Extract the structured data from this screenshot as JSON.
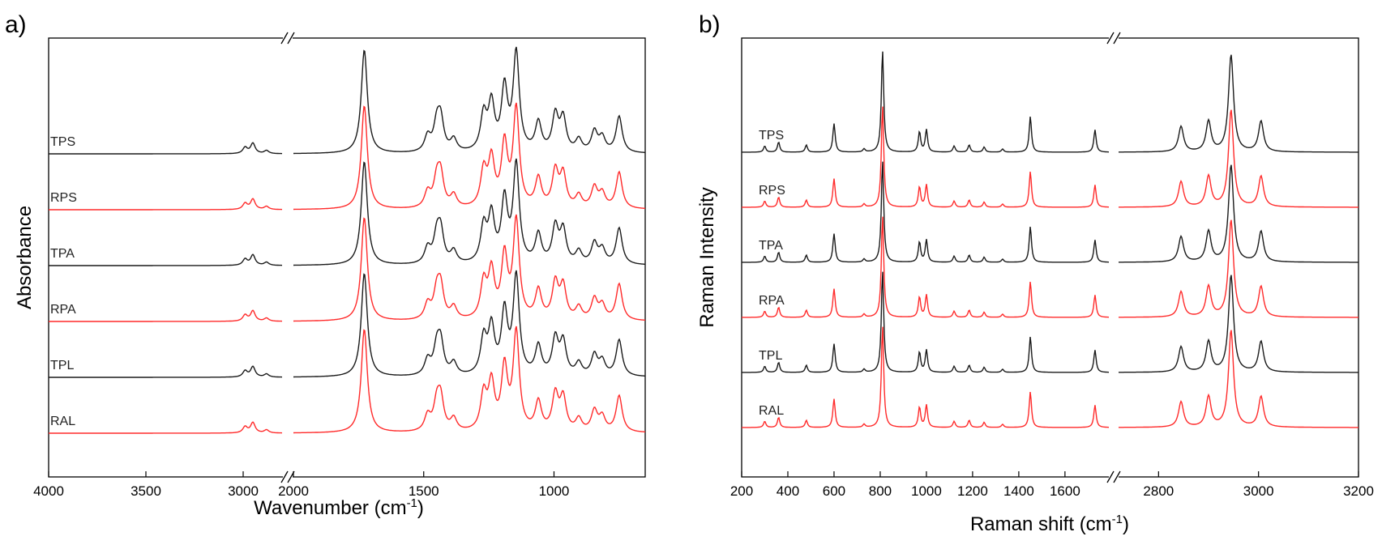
{
  "colors": {
    "black_trace": "#1a1a1a",
    "red_trace": "#ff2a2a",
    "frame": "#000000"
  },
  "chart_data": [
    {
      "type": "line",
      "panel_label": "a)",
      "xlabel": "Wavenumber (cm",
      "xlabel_sup": "-1",
      "xlabel_close": ")",
      "ylabel": "Absorbance",
      "x_reversed": true,
      "x_break": [
        2800,
        2000
      ],
      "segments": [
        [
          4000,
          2800
        ],
        [
          2000,
          650
        ]
      ],
      "xticks": [
        4000,
        3500,
        3000,
        2000,
        1500,
        1000
      ],
      "tick_labels": [
        "4000",
        "3500",
        "3000",
        "2000",
        "1500",
        "1000"
      ],
      "grid": false,
      "series": [
        {
          "name": "TPS",
          "color": "black",
          "peaks": [
            [
              2990,
              0.06
            ],
            [
              2950,
              0.1
            ],
            [
              2880,
              0.03
            ],
            [
              1728,
              1.0
            ],
            [
              1485,
              0.15
            ],
            [
              1450,
              0.25
            ],
            [
              1435,
              0.3
            ],
            [
              1385,
              0.12
            ],
            [
              1270,
              0.35
            ],
            [
              1240,
              0.45
            ],
            [
              1190,
              0.6
            ],
            [
              1145,
              0.95
            ],
            [
              1060,
              0.28
            ],
            [
              995,
              0.35
            ],
            [
              965,
              0.32
            ],
            [
              905,
              0.12
            ],
            [
              845,
              0.2
            ],
            [
              815,
              0.14
            ],
            [
              750,
              0.35
            ]
          ]
        },
        {
          "name": "RPS",
          "color": "red",
          "peaks": [
            [
              2990,
              0.06
            ],
            [
              2950,
              0.1
            ],
            [
              2880,
              0.03
            ],
            [
              1728,
              1.0
            ],
            [
              1485,
              0.15
            ],
            [
              1450,
              0.25
            ],
            [
              1435,
              0.3
            ],
            [
              1385,
              0.12
            ],
            [
              1270,
              0.35
            ],
            [
              1240,
              0.45
            ],
            [
              1190,
              0.6
            ],
            [
              1145,
              0.95
            ],
            [
              1060,
              0.28
            ],
            [
              995,
              0.35
            ],
            [
              965,
              0.32
            ],
            [
              905,
              0.12
            ],
            [
              845,
              0.2
            ],
            [
              815,
              0.14
            ],
            [
              750,
              0.35
            ]
          ]
        },
        {
          "name": "TPA",
          "color": "black",
          "peaks": [
            [
              2990,
              0.06
            ],
            [
              2950,
              0.1
            ],
            [
              2880,
              0.03
            ],
            [
              1728,
              1.0
            ],
            [
              1485,
              0.15
            ],
            [
              1450,
              0.25
            ],
            [
              1435,
              0.3
            ],
            [
              1385,
              0.12
            ],
            [
              1270,
              0.35
            ],
            [
              1240,
              0.45
            ],
            [
              1190,
              0.6
            ],
            [
              1145,
              0.95
            ],
            [
              1060,
              0.28
            ],
            [
              995,
              0.35
            ],
            [
              965,
              0.32
            ],
            [
              905,
              0.12
            ],
            [
              845,
              0.2
            ],
            [
              815,
              0.14
            ],
            [
              750,
              0.35
            ]
          ]
        },
        {
          "name": "RPA",
          "color": "red",
          "peaks": [
            [
              2990,
              0.06
            ],
            [
              2950,
              0.1
            ],
            [
              2880,
              0.03
            ],
            [
              1728,
              1.0
            ],
            [
              1485,
              0.15
            ],
            [
              1450,
              0.25
            ],
            [
              1435,
              0.3
            ],
            [
              1385,
              0.12
            ],
            [
              1270,
              0.35
            ],
            [
              1240,
              0.45
            ],
            [
              1190,
              0.6
            ],
            [
              1145,
              0.95
            ],
            [
              1060,
              0.28
            ],
            [
              995,
              0.35
            ],
            [
              965,
              0.32
            ],
            [
              905,
              0.12
            ],
            [
              845,
              0.2
            ],
            [
              815,
              0.14
            ],
            [
              750,
              0.35
            ]
          ]
        },
        {
          "name": "TPL",
          "color": "black",
          "peaks": [
            [
              2990,
              0.06
            ],
            [
              2950,
              0.1
            ],
            [
              2880,
              0.03
            ],
            [
              1728,
              1.0
            ],
            [
              1485,
              0.15
            ],
            [
              1450,
              0.25
            ],
            [
              1435,
              0.3
            ],
            [
              1385,
              0.12
            ],
            [
              1270,
              0.35
            ],
            [
              1240,
              0.45
            ],
            [
              1190,
              0.6
            ],
            [
              1145,
              0.95
            ],
            [
              1060,
              0.28
            ],
            [
              995,
              0.35
            ],
            [
              965,
              0.32
            ],
            [
              905,
              0.12
            ],
            [
              845,
              0.2
            ],
            [
              815,
              0.14
            ],
            [
              750,
              0.35
            ]
          ]
        },
        {
          "name": "RAL",
          "color": "red",
          "peaks": [
            [
              2990,
              0.06
            ],
            [
              2950,
              0.1
            ],
            [
              2880,
              0.03
            ],
            [
              1728,
              1.0
            ],
            [
              1485,
              0.15
            ],
            [
              1450,
              0.25
            ],
            [
              1435,
              0.3
            ],
            [
              1385,
              0.12
            ],
            [
              1270,
              0.35
            ],
            [
              1240,
              0.45
            ],
            [
              1190,
              0.6
            ],
            [
              1145,
              0.95
            ],
            [
              1060,
              0.28
            ],
            [
              995,
              0.35
            ],
            [
              965,
              0.32
            ],
            [
              905,
              0.12
            ],
            [
              845,
              0.2
            ],
            [
              815,
              0.14
            ],
            [
              750,
              0.35
            ]
          ]
        }
      ]
    },
    {
      "type": "line",
      "panel_label": "b)",
      "xlabel": "Raman shift (cm",
      "xlabel_sup": "-1",
      "xlabel_close": ")",
      "ylabel": "Raman Intensity",
      "x_reversed": false,
      "x_break": [
        1790,
        2720
      ],
      "segments": [
        [
          200,
          1790
        ],
        [
          2720,
          3200
        ]
      ],
      "xticks": [
        200,
        400,
        600,
        800,
        1000,
        1200,
        1400,
        1600,
        2800,
        3000,
        3200
      ],
      "tick_labels": [
        "200",
        "400",
        "600",
        "800",
        "1000",
        "1200",
        "1400",
        "1600",
        "2800",
        "3000",
        "3200"
      ],
      "grid": false,
      "series": [
        {
          "name": "TPS",
          "color": "black",
          "peaks": [
            [
              300,
              0.06
            ],
            [
              360,
              0.1
            ],
            [
              480,
              0.07
            ],
            [
              600,
              0.28
            ],
            [
              730,
              0.03
            ],
            [
              810,
              1.0
            ],
            [
              970,
              0.2
            ],
            [
              1000,
              0.22
            ],
            [
              1120,
              0.06
            ],
            [
              1185,
              0.07
            ],
            [
              1250,
              0.05
            ],
            [
              1330,
              0.03
            ],
            [
              1450,
              0.35
            ],
            [
              1730,
              0.22
            ],
            [
              2845,
              0.25
            ],
            [
              2900,
              0.3
            ],
            [
              2945,
              0.95
            ],
            [
              3005,
              0.3
            ]
          ]
        },
        {
          "name": "RPS",
          "color": "red",
          "peaks": [
            [
              300,
              0.06
            ],
            [
              360,
              0.1
            ],
            [
              480,
              0.07
            ],
            [
              600,
              0.28
            ],
            [
              730,
              0.03
            ],
            [
              810,
              1.0
            ],
            [
              970,
              0.2
            ],
            [
              1000,
              0.22
            ],
            [
              1120,
              0.06
            ],
            [
              1185,
              0.07
            ],
            [
              1250,
              0.05
            ],
            [
              1330,
              0.03
            ],
            [
              1450,
              0.35
            ],
            [
              1730,
              0.22
            ],
            [
              2845,
              0.25
            ],
            [
              2900,
              0.3
            ],
            [
              2945,
              0.95
            ],
            [
              3005,
              0.3
            ]
          ]
        },
        {
          "name": "TPA",
          "color": "black",
          "peaks": [
            [
              300,
              0.06
            ],
            [
              360,
              0.1
            ],
            [
              480,
              0.07
            ],
            [
              600,
              0.28
            ],
            [
              730,
              0.03
            ],
            [
              810,
              1.0
            ],
            [
              970,
              0.2
            ],
            [
              1000,
              0.22
            ],
            [
              1120,
              0.06
            ],
            [
              1185,
              0.07
            ],
            [
              1250,
              0.05
            ],
            [
              1330,
              0.03
            ],
            [
              1450,
              0.35
            ],
            [
              1730,
              0.22
            ],
            [
              2845,
              0.25
            ],
            [
              2900,
              0.3
            ],
            [
              2945,
              0.95
            ],
            [
              3005,
              0.3
            ]
          ]
        },
        {
          "name": "RPA",
          "color": "red",
          "peaks": [
            [
              300,
              0.06
            ],
            [
              360,
              0.1
            ],
            [
              480,
              0.07
            ],
            [
              600,
              0.28
            ],
            [
              730,
              0.03
            ],
            [
              810,
              1.0
            ],
            [
              970,
              0.2
            ],
            [
              1000,
              0.22
            ],
            [
              1120,
              0.06
            ],
            [
              1185,
              0.07
            ],
            [
              1250,
              0.05
            ],
            [
              1330,
              0.03
            ],
            [
              1450,
              0.35
            ],
            [
              1730,
              0.22
            ],
            [
              2845,
              0.25
            ],
            [
              2900,
              0.3
            ],
            [
              2945,
              0.95
            ],
            [
              3005,
              0.3
            ]
          ]
        },
        {
          "name": "TPL",
          "color": "black",
          "peaks": [
            [
              300,
              0.06
            ],
            [
              360,
              0.1
            ],
            [
              480,
              0.07
            ],
            [
              600,
              0.28
            ],
            [
              730,
              0.03
            ],
            [
              810,
              1.0
            ],
            [
              970,
              0.2
            ],
            [
              1000,
              0.22
            ],
            [
              1120,
              0.06
            ],
            [
              1185,
              0.07
            ],
            [
              1250,
              0.05
            ],
            [
              1330,
              0.03
            ],
            [
              1450,
              0.35
            ],
            [
              1730,
              0.22
            ],
            [
              2845,
              0.25
            ],
            [
              2900,
              0.3
            ],
            [
              2945,
              0.95
            ],
            [
              3005,
              0.3
            ]
          ]
        },
        {
          "name": "RAL",
          "color": "red",
          "peaks": [
            [
              300,
              0.06
            ],
            [
              360,
              0.1
            ],
            [
              480,
              0.07
            ],
            [
              600,
              0.28
            ],
            [
              730,
              0.03
            ],
            [
              810,
              1.0
            ],
            [
              970,
              0.2
            ],
            [
              1000,
              0.22
            ],
            [
              1120,
              0.06
            ],
            [
              1185,
              0.07
            ],
            [
              1250,
              0.05
            ],
            [
              1330,
              0.03
            ],
            [
              1450,
              0.35
            ],
            [
              1730,
              0.22
            ],
            [
              2845,
              0.25
            ],
            [
              2900,
              0.3
            ],
            [
              2945,
              0.95
            ],
            [
              3005,
              0.3
            ]
          ]
        }
      ]
    }
  ]
}
